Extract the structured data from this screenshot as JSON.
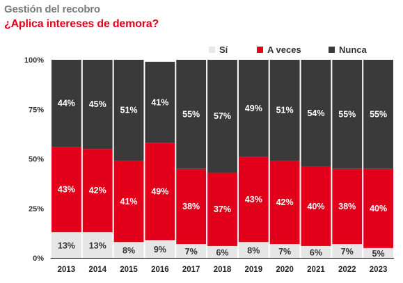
{
  "title": "Gestión del recobro",
  "subtitle": "¿Aplica intereses de demora?",
  "chart_data": {
    "type": "bar",
    "stacked": true,
    "categories": [
      "2013",
      "2014",
      "2015",
      "2016",
      "2017",
      "2018",
      "2019",
      "2020",
      "2021",
      "2022",
      "2023"
    ],
    "series": [
      {
        "name": "Sí",
        "color": "#e6e6e6",
        "label_color": "#333333",
        "values": [
          13,
          13,
          8,
          9,
          7,
          6,
          8,
          7,
          6,
          7,
          5
        ]
      },
      {
        "name": "A veces",
        "color": "#e2001a",
        "label_color": "#ffffff",
        "values": [
          43,
          42,
          41,
          49,
          38,
          37,
          43,
          42,
          40,
          38,
          40
        ]
      },
      {
        "name": "Nunca",
        "color": "#3a3a3a",
        "label_color": "#ffffff",
        "values": [
          44,
          45,
          51,
          41,
          55,
          57,
          49,
          51,
          54,
          55,
          55
        ]
      }
    ],
    "ylim": [
      0,
      100
    ],
    "yticks": [
      "0%",
      "25%",
      "50%",
      "75%",
      "100%"
    ],
    "value_suffix": "%",
    "legend_position": "top-right",
    "grid": false
  }
}
